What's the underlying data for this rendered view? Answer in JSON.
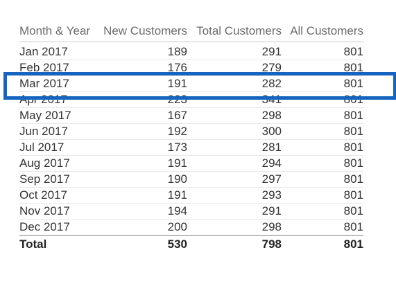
{
  "table": {
    "columns": [
      "Month & Year",
      "New Customers",
      "Total Customers",
      "All Customers"
    ],
    "rows": [
      {
        "month": "Jan 2017",
        "new": "189",
        "total": "291",
        "all": "801"
      },
      {
        "month": "Feb 2017",
        "new": "176",
        "total": "279",
        "all": "801"
      },
      {
        "month": "Mar 2017",
        "new": "191",
        "total": "282",
        "all": "801"
      },
      {
        "month": "Apr 2017",
        "new": "223",
        "total": "341",
        "all": "801"
      },
      {
        "month": "May 2017",
        "new": "167",
        "total": "298",
        "all": "801"
      },
      {
        "month": "Jun 2017",
        "new": "192",
        "total": "300",
        "all": "801"
      },
      {
        "month": "Jul 2017",
        "new": "173",
        "total": "281",
        "all": "801"
      },
      {
        "month": "Aug 2017",
        "new": "191",
        "total": "294",
        "all": "801"
      },
      {
        "month": "Sep 2017",
        "new": "190",
        "total": "297",
        "all": "801"
      },
      {
        "month": "Oct 2017",
        "new": "191",
        "total": "293",
        "all": "801"
      },
      {
        "month": "Nov 2017",
        "new": "194",
        "total": "291",
        "all": "801"
      },
      {
        "month": "Dec 2017",
        "new": "200",
        "total": "298",
        "all": "801"
      }
    ],
    "total": {
      "label": "Total",
      "new": "530",
      "total": "798",
      "all": "801"
    }
  },
  "highlight": {
    "color": "#1565c0",
    "row_label": "Mar 2017"
  },
  "colors": {
    "header_text": "#6b6b6b",
    "cell_text": "#333333"
  }
}
